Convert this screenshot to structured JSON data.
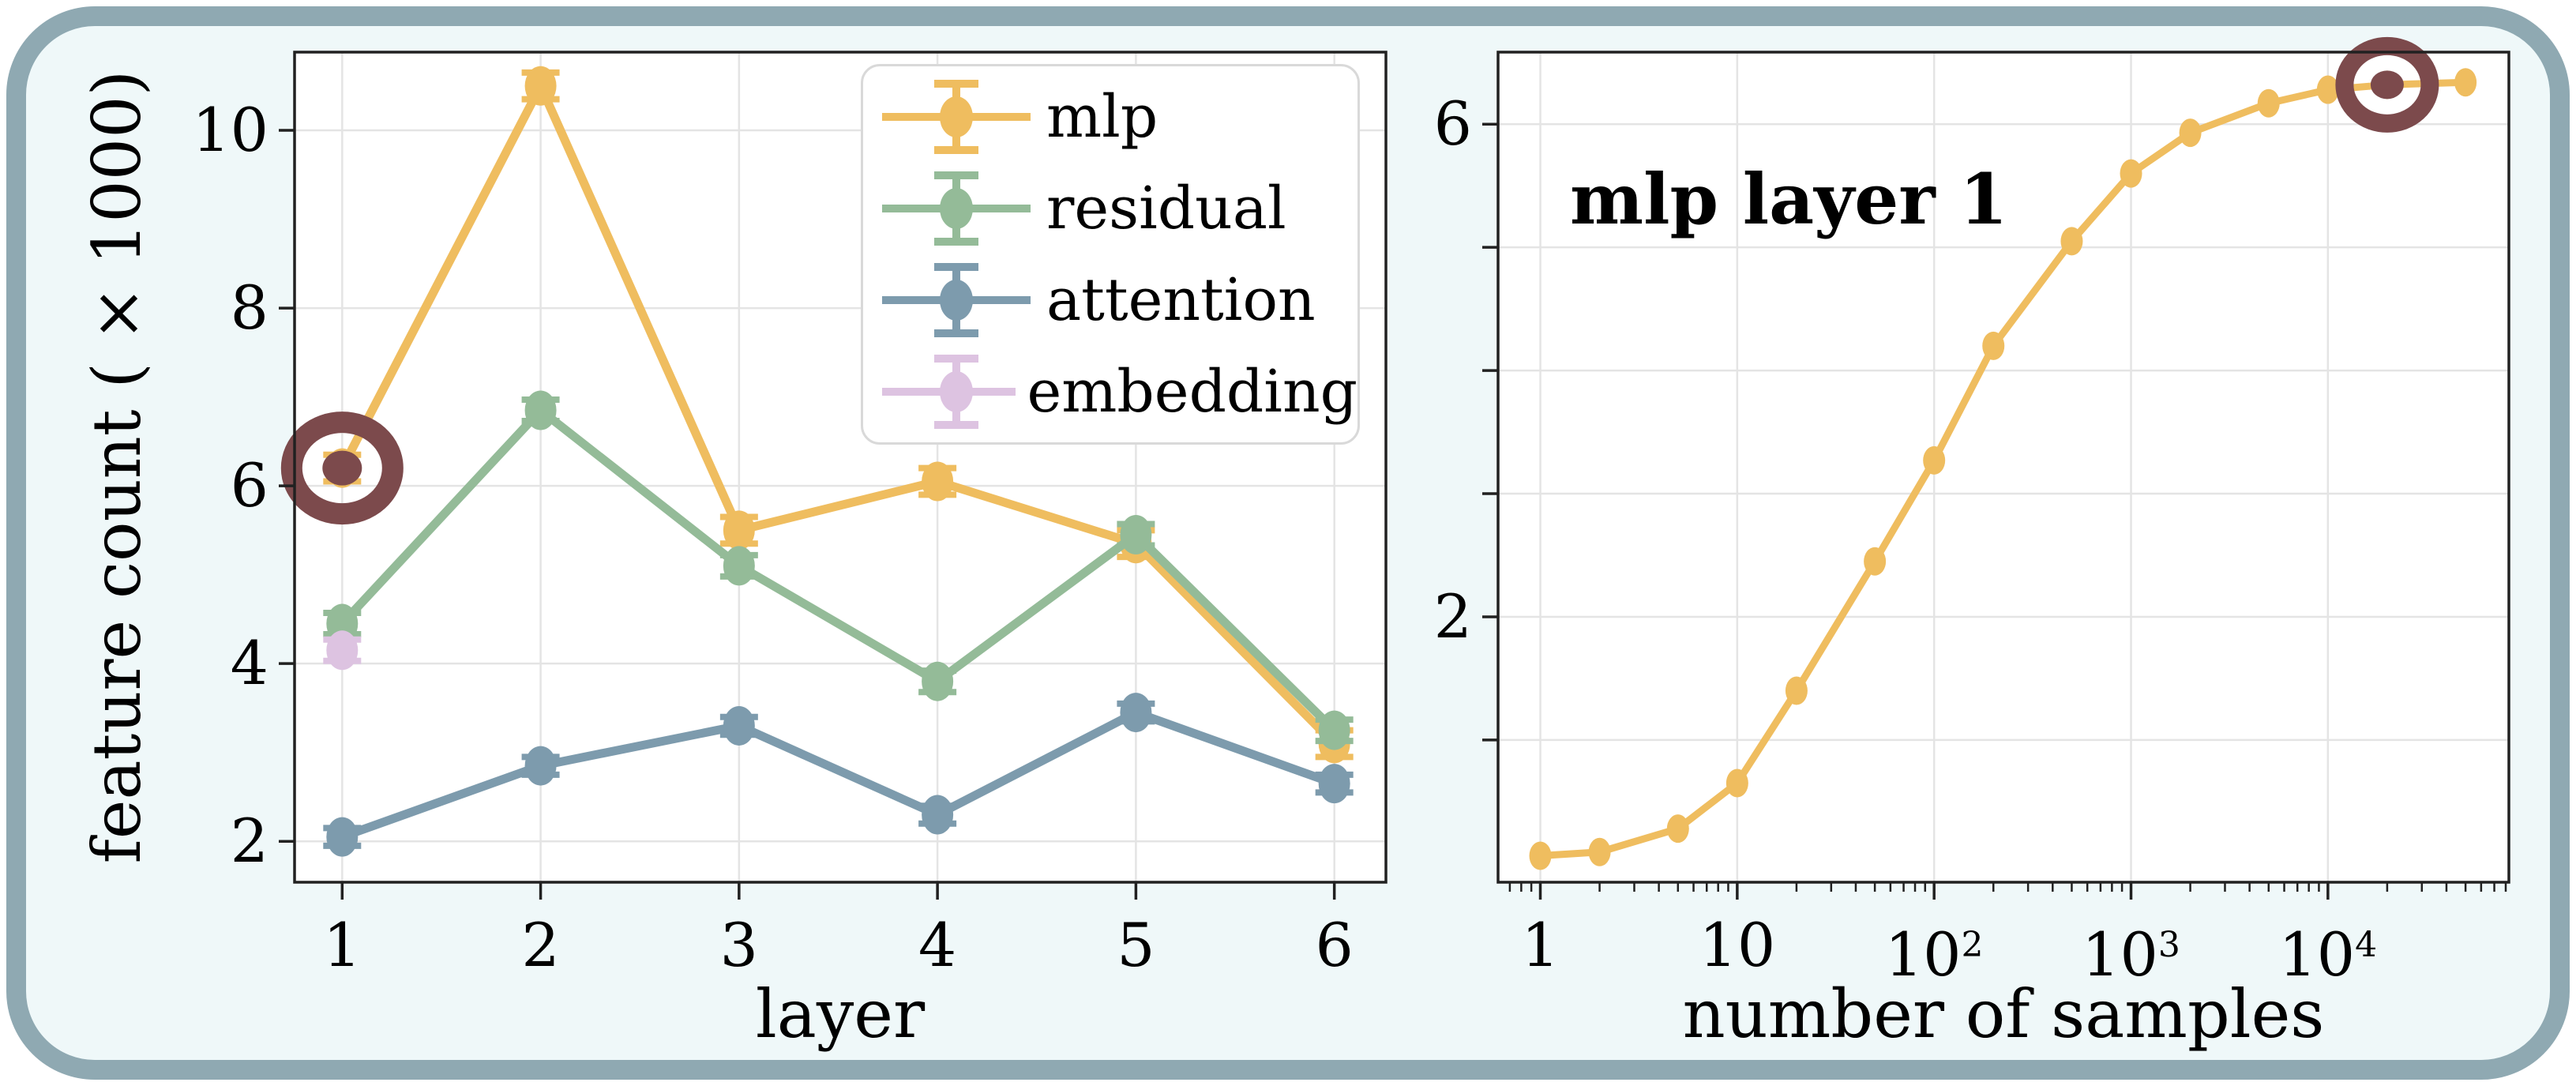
{
  "figure": {
    "panel_fill": "#eff8f9",
    "panel_border_color": "#8fa9b2",
    "plot_background": "#ffffff",
    "grid_color": "#e4e4e4",
    "spine_color": "#212121",
    "target_color": "#7c4a4c"
  },
  "left_chart": {
    "xlabel": "layer",
    "ylabel": "feature count ( × 1000)"
  },
  "right_chart": {
    "title": "mlp layer 1",
    "xlabel": "number of samples"
  },
  "legend": {
    "entries": [
      "mlp",
      "residual",
      "attention",
      "embedding"
    ]
  },
  "chart_data": [
    {
      "type": "line",
      "xlabel": "layer",
      "ylabel": "feature count ( × 1000)",
      "xscale": "linear",
      "xlim": [
        0.76,
        6.26
      ],
      "ylim": [
        1.54,
        10.88
      ],
      "x_ticks": [
        {
          "v": 1,
          "label": "1"
        },
        {
          "v": 2,
          "label": "2"
        },
        {
          "v": 3,
          "label": "3"
        },
        {
          "v": 4,
          "label": "4"
        },
        {
          "v": 5,
          "label": "5"
        },
        {
          "v": 6,
          "label": "6"
        }
      ],
      "y_ticks": [
        {
          "v": 2,
          "label": "2"
        },
        {
          "v": 4,
          "label": "4"
        },
        {
          "v": 6,
          "label": "6"
        },
        {
          "v": 8,
          "label": "8"
        },
        {
          "v": 10,
          "label": "10"
        }
      ],
      "grid": true,
      "legend_position": "upper right",
      "categories": [
        1,
        2,
        3,
        4,
        5,
        6
      ],
      "series": [
        {
          "name": "mlp",
          "color": "#efbd5f",
          "x": [
            1,
            2,
            3,
            4,
            5,
            6
          ],
          "values": [
            6.2,
            10.5,
            5.5,
            6.05,
            5.35,
            3.1
          ],
          "err": 0.15
        },
        {
          "name": "residual",
          "color": "#94bb98",
          "x": [
            1,
            2,
            3,
            4,
            5,
            6
          ],
          "values": [
            4.45,
            6.85,
            5.1,
            3.8,
            5.45,
            3.25
          ],
          "err": 0.12
        },
        {
          "name": "attention",
          "color": "#7d9bad",
          "x": [
            1,
            2,
            3,
            4,
            5,
            6
          ],
          "values": [
            2.05,
            2.85,
            3.3,
            2.3,
            3.45,
            2.65
          ],
          "err": 0.1
        },
        {
          "name": "embedding",
          "color": "#ddc3e1",
          "x": [
            1
          ],
          "values": [
            4.15
          ],
          "err": 0.12
        }
      ],
      "annotations": [
        {
          "type": "target",
          "x": 1,
          "y": 6.2,
          "size": [
            64,
            58,
            27,
            25,
            22
          ]
        }
      ]
    },
    {
      "type": "line",
      "title": "mlp layer 1",
      "xlabel": "number of samples",
      "xscale": "log",
      "xlim": [
        0.61,
        83000
      ],
      "ylim": [
        -0.155,
        6.585
      ],
      "x_ticks": [
        {
          "v": 1,
          "label": "1"
        },
        {
          "v": 10,
          "label": "10"
        },
        {
          "v": 100,
          "label": "10",
          "sup": "2"
        },
        {
          "v": 1000,
          "label": "10",
          "sup": "3"
        },
        {
          "v": 10000,
          "label": "10",
          "sup": "4"
        }
      ],
      "y_ticks": [
        {
          "v": 1,
          "label": ""
        },
        {
          "v": 2,
          "label": "2"
        },
        {
          "v": 3,
          "label": ""
        },
        {
          "v": 4,
          "label": ""
        },
        {
          "v": 5,
          "label": ""
        },
        {
          "v": 6,
          "label": "6"
        }
      ],
      "grid": true,
      "series": [
        {
          "name": "mlp",
          "color": "#efbd5f",
          "x": [
            1,
            2,
            5,
            10,
            20,
            50,
            100,
            200,
            500,
            1000,
            2000,
            5000,
            10000,
            20000,
            50000
          ],
          "values": [
            0.06,
            0.09,
            0.28,
            0.65,
            1.4,
            2.45,
            3.27,
            4.2,
            5.05,
            5.6,
            5.93,
            6.17,
            6.28,
            6.32,
            6.34
          ],
          "err": 0
        }
      ],
      "annotations": [
        {
          "type": "target",
          "x": 20000,
          "y": 6.32,
          "size": [
            54,
            49,
            23,
            21,
            18
          ]
        }
      ]
    }
  ]
}
